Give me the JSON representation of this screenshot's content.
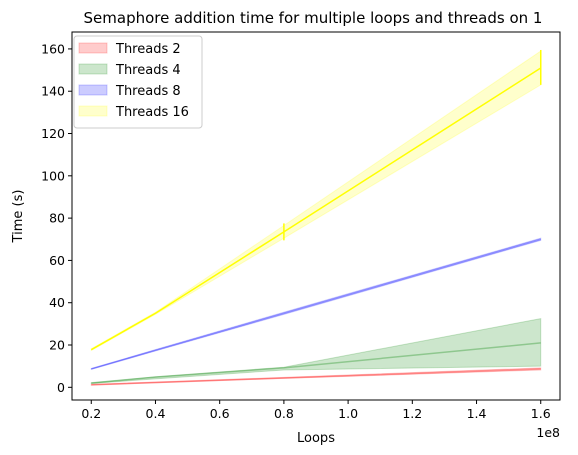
{
  "chart_data": {
    "type": "line",
    "title": "Semaphore addition time for multiple loops and threads on 1",
    "xlabel": "Loops",
    "ylabel": "Time (s)",
    "x_offset_label": "1e8",
    "x": [
      0.2,
      0.4,
      0.8,
      1.6
    ],
    "x_scale_exponent": 8,
    "xlim": [
      0.14,
      1.66
    ],
    "ylim": [
      -6,
      168
    ],
    "x_ticks": [
      0.2,
      0.4,
      0.6,
      0.8,
      1.0,
      1.2,
      1.4,
      1.6
    ],
    "x_tick_labels": [
      "0.2",
      "0.4",
      "0.6",
      "0.8",
      "1.0",
      "1.2",
      "1.4",
      "1.6"
    ],
    "y_ticks": [
      0,
      20,
      40,
      60,
      80,
      100,
      120,
      140,
      160
    ],
    "y_tick_labels": [
      "0",
      "20",
      "40",
      "60",
      "80",
      "100",
      "120",
      "140",
      "160"
    ],
    "grid": false,
    "legend_position": "top-left",
    "series": [
      {
        "name": "Threads 2",
        "color": "#ff0000",
        "mean": [
          1.2,
          2.3,
          4.4,
          8.7
        ],
        "lower": [
          1.0,
          2.1,
          4.2,
          8.2
        ],
        "upper": [
          1.4,
          2.5,
          4.7,
          9.2
        ],
        "error_bars": [
          null,
          null,
          null,
          null
        ]
      },
      {
        "name": "Threads 4",
        "color": "#008000",
        "mean": [
          2.0,
          4.8,
          9.2,
          21.0
        ],
        "lower": [
          1.8,
          4.0,
          8.2,
          10.0
        ],
        "upper": [
          2.2,
          5.0,
          9.5,
          32.5
        ],
        "error_bars": [
          null,
          null,
          null,
          null
        ]
      },
      {
        "name": "Threads 8",
        "color": "#0000ff",
        "mean": [
          8.7,
          17.5,
          35.0,
          70.0
        ],
        "lower": [
          8.5,
          17.2,
          34.5,
          69.5
        ],
        "upper": [
          8.9,
          17.8,
          35.5,
          70.5
        ],
        "error_bars": [
          null,
          null,
          null,
          null
        ]
      },
      {
        "name": "Threads 16",
        "color": "#ffff00",
        "mean": [
          17.8,
          35.0,
          73.5,
          151.0
        ],
        "lower": [
          17.4,
          34.5,
          70.5,
          143.0
        ],
        "upper": [
          18.2,
          35.5,
          76.5,
          159.0
        ],
        "error_bars": [
          null,
          null,
          [
            69.5,
            77.5
          ],
          [
            143.0,
            159.5
          ]
        ]
      }
    ]
  }
}
